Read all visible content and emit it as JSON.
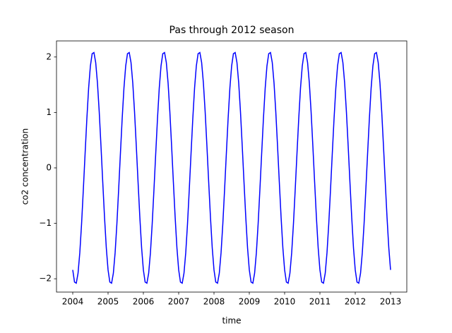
{
  "chart_data": {
    "type": "line",
    "title": "Pas through 2012 season",
    "x_label": "time",
    "y_label": "co2 concentration",
    "x": [
      2004,
      2004.05,
      2004.1,
      2004.15,
      2004.2,
      2004.25,
      2004.3,
      2004.35,
      2004.4,
      2004.45,
      2004.5,
      2004.55,
      2004.6,
      2004.65,
      2004.7,
      2004.75,
      2004.8,
      2004.85,
      2004.9,
      2004.95,
      2005,
      2005.05,
      2005.1,
      2005.15,
      2005.2,
      2005.25,
      2005.3,
      2005.35,
      2005.4,
      2005.45,
      2005.5,
      2005.55,
      2005.6,
      2005.65,
      2005.7,
      2005.75,
      2005.8,
      2005.85,
      2005.9,
      2005.95,
      2006,
      2006.05,
      2006.1,
      2006.15,
      2006.2,
      2006.25,
      2006.3,
      2006.35,
      2006.4,
      2006.45,
      2006.5,
      2006.55,
      2006.6,
      2006.65,
      2006.7,
      2006.75,
      2006.8,
      2006.85,
      2006.9,
      2006.95,
      2007,
      2007.05,
      2007.1,
      2007.15,
      2007.2,
      2007.25,
      2007.3,
      2007.35,
      2007.4,
      2007.45,
      2007.5,
      2007.55,
      2007.6,
      2007.65,
      2007.7,
      2007.75,
      2007.8,
      2007.85,
      2007.9,
      2007.95,
      2008,
      2008.05,
      2008.1,
      2008.15,
      2008.2,
      2008.25,
      2008.3,
      2008.35,
      2008.4,
      2008.45,
      2008.5,
      2008.55,
      2008.6,
      2008.65,
      2008.7,
      2008.75,
      2008.8,
      2008.85,
      2008.9,
      2008.95,
      2009,
      2009.05,
      2009.1,
      2009.15,
      2009.2,
      2009.25,
      2009.3,
      2009.35,
      2009.4,
      2009.45,
      2009.5,
      2009.55,
      2009.6,
      2009.65,
      2009.7,
      2009.75,
      2009.8,
      2009.85,
      2009.9,
      2009.95,
      2010,
      2010.05,
      2010.1,
      2010.15,
      2010.2,
      2010.25,
      2010.3,
      2010.35,
      2010.4,
      2010.45,
      2010.5,
      2010.55,
      2010.6,
      2010.65,
      2010.7,
      2010.75,
      2010.8,
      2010.85,
      2010.9,
      2010.95,
      2011,
      2011.05,
      2011.1,
      2011.15,
      2011.2,
      2011.25,
      2011.3,
      2011.35,
      2011.4,
      2011.45,
      2011.5,
      2011.55,
      2011.6,
      2011.65,
      2011.7,
      2011.75,
      2011.8,
      2011.85,
      2011.9,
      2011.95,
      2012,
      2012.05,
      2012.1,
      2012.15,
      2012.2,
      2012.25,
      2012.3,
      2012.35,
      2012.4,
      2012.45,
      2012.5,
      2012.55,
      2012.6,
      2012.65,
      2012.7,
      2012.75,
      2012.8,
      2012.85,
      2012.9,
      2012.95,
      2013
    ],
    "series": [
      {
        "color": "#0000ff",
        "values": [
          -1.84,
          -2.06,
          -2.08,
          -1.9,
          -1.53,
          -1.01,
          -0.39,
          0.26,
          0.89,
          1.44,
          1.84,
          2.06,
          2.08,
          1.9,
          1.53,
          1.01,
          0.39,
          -0.26,
          -0.89,
          -1.44,
          -1.84,
          -2.06,
          -2.08,
          -1.9,
          -1.53,
          -1.01,
          -0.39,
          0.26,
          0.89,
          1.44,
          1.84,
          2.06,
          2.08,
          1.9,
          1.53,
          1.01,
          0.39,
          -0.26,
          -0.89,
          -1.44,
          -1.84,
          -2.06,
          -2.08,
          -1.9,
          -1.53,
          -1.01,
          -0.39,
          0.26,
          0.89,
          1.44,
          1.84,
          2.06,
          2.08,
          1.9,
          1.53,
          1.01,
          0.39,
          -0.26,
          -0.89,
          -1.44,
          -1.84,
          -2.06,
          -2.08,
          -1.9,
          -1.53,
          -1.01,
          -0.39,
          0.26,
          0.89,
          1.44,
          1.84,
          2.06,
          2.08,
          1.9,
          1.53,
          1.01,
          0.39,
          -0.26,
          -0.89,
          -1.44,
          -1.84,
          -2.06,
          -2.08,
          -1.9,
          -1.53,
          -1.01,
          -0.39,
          0.26,
          0.89,
          1.44,
          1.84,
          2.06,
          2.08,
          1.9,
          1.53,
          1.01,
          0.39,
          -0.26,
          -0.89,
          -1.44,
          -1.84,
          -2.06,
          -2.08,
          -1.9,
          -1.53,
          -1.01,
          -0.39,
          0.26,
          0.89,
          1.44,
          1.84,
          2.06,
          2.08,
          1.9,
          1.53,
          1.01,
          0.39,
          -0.26,
          -0.89,
          -1.44,
          -1.84,
          -2.06,
          -2.08,
          -1.9,
          -1.53,
          -1.01,
          -0.39,
          0.26,
          0.89,
          1.44,
          1.84,
          2.06,
          2.08,
          1.9,
          1.53,
          1.01,
          0.39,
          -0.26,
          -0.89,
          -1.44,
          -1.84,
          -2.06,
          -2.08,
          -1.9,
          -1.53,
          -1.01,
          -0.39,
          0.26,
          0.89,
          1.44,
          1.84,
          2.06,
          2.08,
          1.9,
          1.53,
          1.01,
          0.39,
          -0.26,
          -0.89,
          -1.44,
          -1.84,
          -2.06,
          -2.08,
          -1.9,
          -1.53,
          -1.01,
          -0.39,
          0.26,
          0.89,
          1.44,
          1.84,
          2.06,
          2.08,
          1.9,
          1.53,
          1.01,
          0.39,
          -0.26,
          -0.89,
          -1.44,
          -1.84
        ]
      }
    ],
    "xlim": [
      2003.54,
      2013.46
    ],
    "ylim": [
      -2.24,
      2.29
    ],
    "xticks": [
      2004,
      2005,
      2006,
      2007,
      2008,
      2009,
      2010,
      2011,
      2012,
      2013
    ],
    "yticks": [
      {
        "value": -2,
        "label": "−2"
      },
      {
        "value": -1,
        "label": "−1"
      },
      0,
      1,
      2
    ],
    "grid": false
  }
}
